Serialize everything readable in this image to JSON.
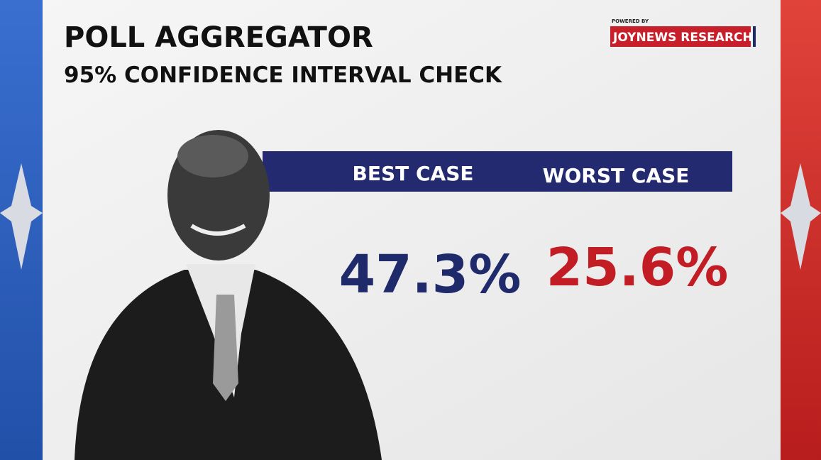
{
  "header": {
    "title": "POLL AGGREGATOR",
    "subtitle": "95% CONFIDENCE INTERVAL CHECK"
  },
  "branding": {
    "powered_by": "POWERED BY",
    "name": "JOYNEWS RESEARCH"
  },
  "columns": [
    {
      "label": "BEST CASE",
      "value": "47.3%"
    },
    {
      "label": "WORST CASE",
      "value": "25.6%"
    }
  ]
}
